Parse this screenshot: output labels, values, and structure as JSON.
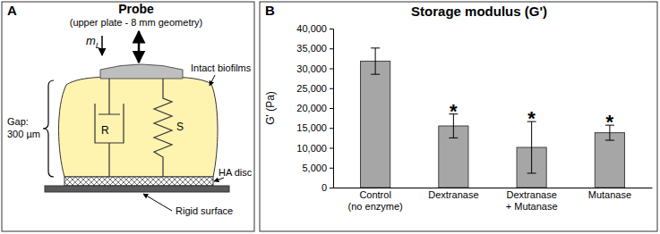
{
  "panel_labels": [
    "A",
    "B"
  ],
  "diagram": {
    "probe": "Probe",
    "probe_note": "(upper plate - 8 mm geometry)",
    "load": {
      "symbol": "m",
      "subscript": "L"
    },
    "gap": "Gap:",
    "gap_value": "300 µm",
    "biofilm": "Intact biofilms",
    "dashpot": "R",
    "spring": "S",
    "disc": "HA disc",
    "surface": "Rigid surface"
  },
  "chart_data": {
    "type": "bar",
    "title": "Storage modulus (G')",
    "y_label": "G' (Pa)",
    "categories": [
      "Control\n(no enzyme)",
      "Dextranase",
      "Dextranase\n+ Mutanase",
      "Mutanase"
    ],
    "values": [
      31800,
      15500,
      10100,
      13800
    ],
    "errors": [
      3300,
      3000,
      6500,
      1900
    ],
    "color": "#a6a6a6",
    "ylim": [
      0,
      40000
    ],
    "yticks": [
      0,
      {
        "value": 5000,
        "label": "5,000"
      },
      {
        "value": 10000,
        "label": "10,000"
      },
      {
        "value": 15000,
        "label": "15,000"
      },
      {
        "value": 20000,
        "label": "20,000"
      },
      {
        "value": 25000,
        "label": "25,000"
      },
      {
        "value": 30000,
        "label": "30,000"
      },
      {
        "value": 35000,
        "label": "35,000"
      },
      {
        "value": 40000,
        "label": "40,000"
      }
    ],
    "grid": false,
    "annotations": [
      {
        "text": "*",
        "category": 1
      },
      {
        "text": "*",
        "category": 2
      },
      {
        "text": "*",
        "category": 3
      }
    ]
  }
}
